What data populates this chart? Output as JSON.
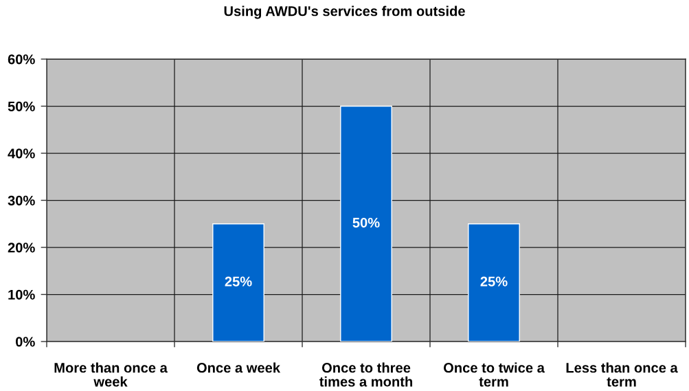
{
  "chart_data": {
    "type": "bar",
    "title": "Using AWDU's services from outside",
    "categories": [
      "More than once a week",
      "Once a week",
      "Once to three times a month",
      "Once to twice a term",
      "Less than once a term"
    ],
    "values": [
      0,
      25,
      50,
      25,
      0
    ],
    "color": "#0066cc",
    "value_labels": [
      null,
      "25%",
      "50%",
      "25%",
      null
    ],
    "ylim": [
      0,
      60
    ],
    "yticks": [
      {
        "value": 0,
        "label": "0%"
      },
      {
        "value": 10,
        "label": "10%"
      },
      {
        "value": 20,
        "label": "20%"
      },
      {
        "value": 30,
        "label": "30%"
      },
      {
        "value": 40,
        "label": "40%"
      },
      {
        "value": 50,
        "label": "50%"
      },
      {
        "value": 60,
        "label": "60%"
      }
    ],
    "grid": true,
    "legend": false
  }
}
